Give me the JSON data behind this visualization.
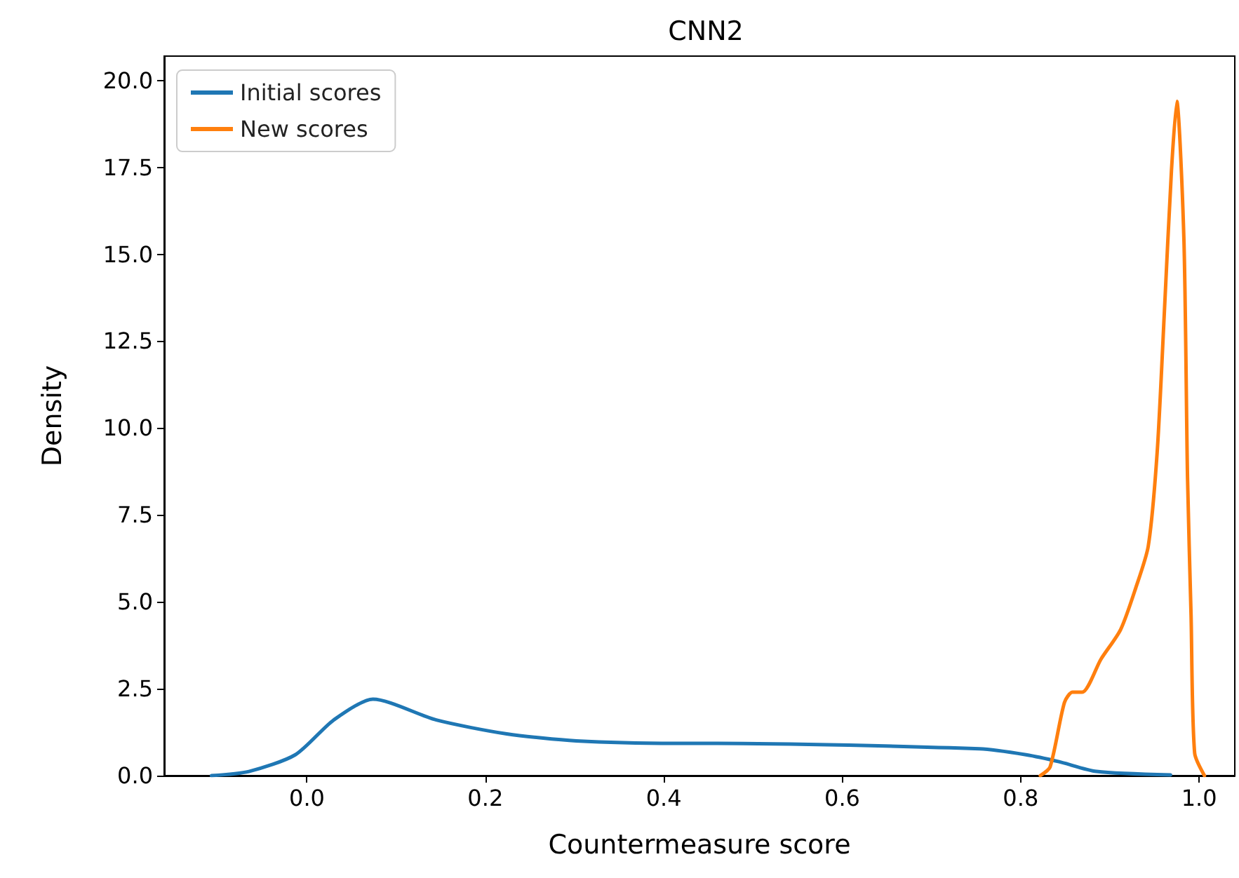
{
  "chart_data": {
    "type": "line",
    "title": "CNN2",
    "xlabel": "Countermeasure score",
    "ylabel": "Density",
    "xlim": [
      -0.16,
      1.04
    ],
    "ylim": [
      0,
      20.7
    ],
    "xticks": [
      {
        "value": 0,
        "label": "0.0"
      },
      {
        "value": 0.2,
        "label": "0.2"
      },
      {
        "value": 0.4,
        "label": "0.4"
      },
      {
        "value": 0.6,
        "label": "0.6"
      },
      {
        "value": 0.8,
        "label": "0.8"
      },
      {
        "value": 1,
        "label": "1.0"
      }
    ],
    "yticks": [
      {
        "value": 0,
        "label": "0.0"
      },
      {
        "value": 2.5,
        "label": "2.5"
      },
      {
        "value": 5,
        "label": "5.0"
      },
      {
        "value": 7.5,
        "label": "7.5"
      },
      {
        "value": 10,
        "label": "10.0"
      },
      {
        "value": 12.5,
        "label": "12.5"
      },
      {
        "value": 15,
        "label": "15.0"
      },
      {
        "value": 17.5,
        "label": "17.5"
      },
      {
        "value": 20,
        "label": "20.0"
      }
    ],
    "grid": false,
    "legend": "top left",
    "marker": "none",
    "line_style": "solid",
    "series": [
      {
        "name": "Initial scores",
        "color": "#1f77b4",
        "x": [
          -0.107,
          -0.065,
          -0.013,
          0.03,
          0.074,
          0.145,
          0.224,
          0.302,
          0.413,
          0.46,
          0.754,
          0.806,
          0.843,
          0.885,
          0.968
        ],
        "values": [
          0,
          0.12,
          0.6,
          1.6,
          2.2,
          1.6,
          1.2,
          1.0,
          0.93,
          0.93,
          0.77,
          0.6,
          0.4,
          0.12,
          0.02
        ]
      },
      {
        "name": "New scores",
        "color": "#ff7f0e",
        "x": [
          0.822,
          0.833,
          0.849,
          0.858,
          0.869,
          0.89,
          0.912,
          0.929,
          0.943,
          0.953,
          0.961,
          0.969,
          0.975,
          0.983,
          0.987,
          0.991,
          0.995,
          1.006
        ],
        "values": [
          0,
          0.25,
          2.1,
          2.4,
          2.4,
          3.35,
          4.2,
          5.4,
          6.6,
          9.3,
          13.3,
          17.4,
          19.4,
          15.4,
          8.6,
          4.6,
          0.65,
          0
        ]
      }
    ]
  }
}
